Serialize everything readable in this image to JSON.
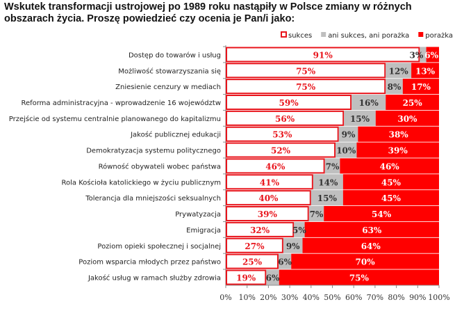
{
  "chart_data": {
    "type": "bar",
    "orientation": "horizontal",
    "stacked": "percent",
    "title": "Wskutek transformacji ustrojowej po 1989 roku nastąpiły w Polsce zmiany w różnych obszarach życia. Proszę powiedzieć czy ocenia je Pan/i jako:",
    "categories": [
      "Dostęp do towarów i usług",
      "Możliwość stowarzyszania się",
      "Zniesienie cenzury w mediach",
      "Reforma administracyjna - wprowadzenie 16 województw",
      "Przejście od systemu centralnie planowanego do kapitalizmu",
      "Jakość publicznej edukacji",
      "Demokratyzacja systemu politycznego",
      "Równość obywateli wobec państwa",
      "Rola Kościoła katolickiego w życiu publicznym",
      "Tolerancja dla mniejszości seksualnych",
      "Prywatyzacja",
      "Emigracja",
      "Poziom opieki społecznej i socjalnej",
      "Poziom wsparcia młodych przez państwo",
      "Jakość usług w ramach służby zdrowia"
    ],
    "series": [
      {
        "name": "sukces",
        "color": "#ffffff",
        "border": "#e8141b",
        "values": [
          91,
          75,
          75,
          59,
          56,
          53,
          52,
          46,
          41,
          40,
          39,
          32,
          27,
          25,
          19
        ]
      },
      {
        "name": "ani sukces, ani porażka",
        "color": "#bfbfbf",
        "values": [
          3,
          12,
          8,
          16,
          15,
          9,
          10,
          7,
          14,
          15,
          7,
          5,
          9,
          6,
          6
        ]
      },
      {
        "name": "porażka",
        "color": "#ff0000",
        "values": [
          6,
          13,
          17,
          25,
          30,
          38,
          39,
          46,
          45,
          45,
          54,
          63,
          64,
          70,
          75
        ]
      }
    ],
    "xticks": [
      "0%",
      "10%",
      "20%",
      "30%",
      "40%",
      "50%",
      "60%",
      "70%",
      "80%",
      "90%",
      "100%"
    ],
    "xlim": [
      0,
      100
    ],
    "legend": "top-right",
    "grid": false
  }
}
